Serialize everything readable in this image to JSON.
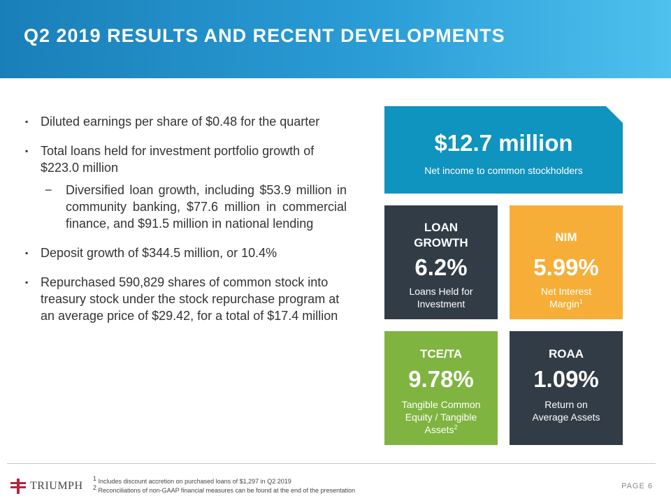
{
  "header": {
    "title": "Q2 2019 RESULTS AND RECENT DEVELOPMENTS"
  },
  "bullets": {
    "b1": "Diluted earnings per share of $0.48 for the quarter",
    "b2": "Total loans held for investment portfolio growth of $223.0 million",
    "b2_sub": "Diversified loan growth, including $53.9 million in community banking, $77.6 million in commercial finance, and $91.5 million in national lending",
    "b3": "Deposit growth of $344.5 million, or 10.4%",
    "b4": "Repurchased 590,829 shares of common stock into treasury stock under the stock repurchase program at an average price of $29.42, for a total of $17.4 million",
    "bullet_mark": "▪",
    "sub_mark": "−"
  },
  "net_income": {
    "value": "$12.7 million",
    "label": "Net income to common stockholders"
  },
  "loan_growth": {
    "head": "LOAN GROWTH",
    "value": "6.2%",
    "label": "Loans Held for Investment"
  },
  "nim": {
    "head": "NIM",
    "value": "5.99%",
    "label": "Net Interest Margin",
    "footnote": "1"
  },
  "tce_ta": {
    "head": "TCE/TA",
    "value": "9.78%",
    "label": "Tangible Common Equity / Tangible Assets",
    "footnote": "2"
  },
  "roaa": {
    "head": "ROAA",
    "value": "1.09%",
    "label": "Return on Average Assets"
  },
  "footer": {
    "logo_text": "TRIUMPH",
    "note1_num": "1",
    "note1": "Includes discount accretion on purchased loans of $1,297 in Q2 2019",
    "note2_num": "2",
    "note2": "Reconciliations of non-GAAP financial measures can be found at the end of the presentation",
    "page_label": "PAGE 6"
  },
  "colors": {
    "header_start": "#1a7fb8",
    "header_end": "#4ec1ee",
    "net_income_bg": "#0f93bf",
    "dark_card": "#323c46",
    "orange_card": "#f6ae38",
    "green_card": "#7fb441",
    "logo_red": "#b5263b"
  }
}
